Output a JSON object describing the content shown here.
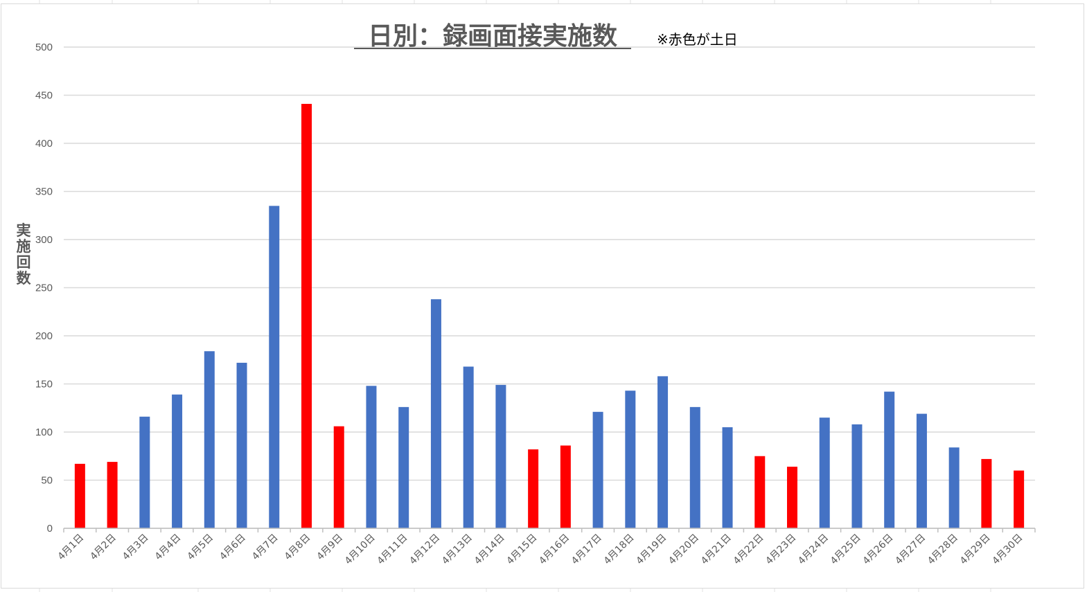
{
  "chart_data": {
    "type": "bar",
    "title": "日別：録画面接実施数",
    "note": "※赤色が土日",
    "xlabel": "",
    "ylabel": "実施回数",
    "ylim": [
      0,
      500
    ],
    "yticks": [
      0,
      50,
      100,
      150,
      200,
      250,
      300,
      350,
      400,
      450,
      500
    ],
    "grid": true,
    "legend": "none",
    "colors": {
      "weekday": "#4472C4",
      "weekend": "#FF0000"
    },
    "categories": [
      "4月1日",
      "4月2日",
      "4月3日",
      "4月4日",
      "4月5日",
      "4月6日",
      "4月7日",
      "4月8日",
      "4月9日",
      "4月10日",
      "4月11日",
      "4月12日",
      "4月13日",
      "4月14日",
      "4月15日",
      "4月16日",
      "4月17日",
      "4月18日",
      "4月19日",
      "4月20日",
      "4月21日",
      "4月22日",
      "4月23日",
      "4月24日",
      "4月25日",
      "4月26日",
      "4月27日",
      "4月28日",
      "4月29日",
      "4月30日"
    ],
    "values": [
      67,
      69,
      116,
      139,
      184,
      172,
      335,
      441,
      106,
      148,
      126,
      238,
      168,
      149,
      82,
      86,
      121,
      143,
      158,
      126,
      105,
      75,
      64,
      115,
      108,
      142,
      119,
      84,
      72,
      60
    ],
    "weekend": [
      true,
      true,
      false,
      false,
      false,
      false,
      false,
      true,
      true,
      false,
      false,
      false,
      false,
      false,
      true,
      true,
      false,
      false,
      false,
      false,
      false,
      true,
      true,
      false,
      false,
      false,
      false,
      false,
      true,
      true
    ]
  }
}
